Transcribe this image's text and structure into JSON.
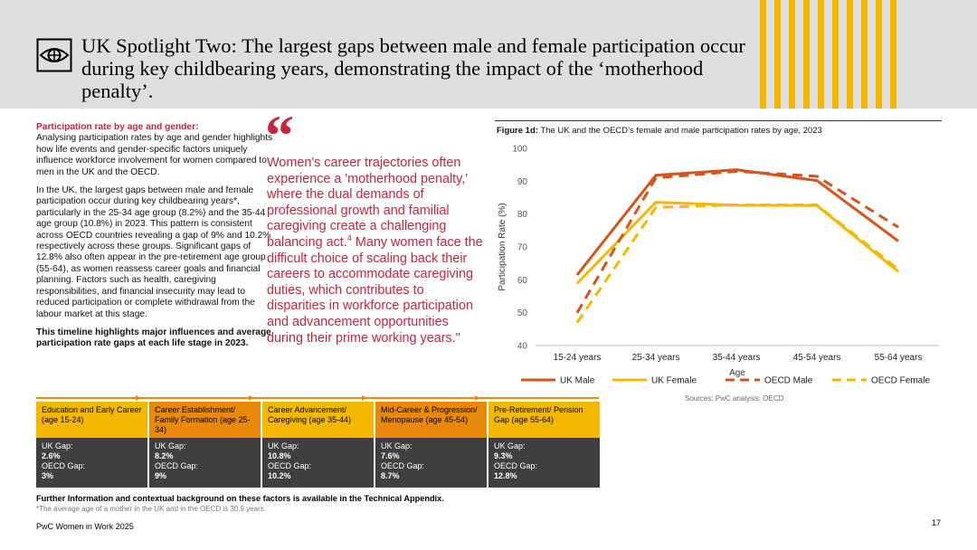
{
  "header": {
    "title": "UK Spotlight Two: The largest gaps between male and female participation occur during key childbearing years, demonstrating the impact of the ‘motherhood penalty’.",
    "icon": "eye-icon",
    "stripe_color": "#f5b800"
  },
  "left": {
    "p1_heading": "Participation rate by age and gender:",
    "p1_body": "Analysing participation rates by age and gender highlights how life events and gender-specific factors uniquely influence workforce involvement for women compared to men in the UK and the OECD.",
    "p2": "In the UK, the largest gaps between male and female participation occur during key childbearing years*, particularly in the 25-34 age group (8.2%) and the 35-44 age group (10.8%) in 2023. This pattern is consistent across OECD countries revealing a gap of 9% and 10.2% respectively across these groups. Significant gaps of 12.8% also often appear in the pre-retirement age group (55-64), as women reassess career goals and financial planning. Factors such as health, caregiving responsibilities, and financial insecurity may lead to reduced participation or complete withdrawal from the labour market at this stage.",
    "p3": "This timeline highlights major influences and average participation rate gaps at each life stage in 2023."
  },
  "quote": {
    "text_before": "Women's career trajectories often experience a 'motherhood penalty,' where the dual demands of professional growth and familial caregiving create a challenging balancing act.",
    "ref": "4",
    "text_after": " Many women face the difficult choice of scaling back their careers to accommodate caregiving duties, which contributes to disparities in workforce participation and advancement opportunities during their prime working years.\"",
    "color": "#c8243e"
  },
  "figure": {
    "caption_label": "Figure 1d:",
    "caption_text": " The UK and the OECD’s female and male participation rates by age, 2023",
    "sources": "Sources: PwC analysis; OECD"
  },
  "chart_data": {
    "type": "line",
    "categories": [
      "15-24 years",
      "25-34 years",
      "35-44 years",
      "45-54 years",
      "55-64 years"
    ],
    "series": [
      {
        "name": "UK Male",
        "values": [
          61.5,
          91.8,
          93.5,
          90.2,
          71.8
        ],
        "color": "#d4541c",
        "dashed": false
      },
      {
        "name": "UK Female",
        "values": [
          58.9,
          83.6,
          82.7,
          82.6,
          62.5
        ],
        "color": "#f5b800",
        "dashed": false
      },
      {
        "name": "OECD Male",
        "values": [
          50.0,
          91.0,
          93.0,
          91.5,
          76.0
        ],
        "color": "#d4541c",
        "dashed": true
      },
      {
        "name": "OECD Female",
        "values": [
          47.0,
          82.0,
          82.8,
          82.8,
          63.2
        ],
        "color": "#f5b800",
        "dashed": true
      }
    ],
    "xlabel": "Age",
    "ylabel": "Participation Rate (%)",
    "ylim": [
      40,
      100
    ],
    "yticks": [
      40,
      50,
      60,
      70,
      80,
      90,
      100
    ],
    "grid": false,
    "legend_position": "bottom"
  },
  "stages": [
    {
      "title": "Education and Early Career (age 15-24)",
      "uk_label": "UK Gap:",
      "uk_gap": "2.6%",
      "oecd_label": "OECD Gap:",
      "oecd_gap": "3%",
      "color": "#f5b800"
    },
    {
      "title": "Career Establishment/ Family Formation (age 25-34)",
      "uk_label": "UK Gap:",
      "uk_gap": "8.2%",
      "oecd_label": "OECD Gap:",
      "oecd_gap": "9%",
      "color": "#e8890c"
    },
    {
      "title": "Career Advancement/ Caregiving (age 35-44)",
      "uk_label": "UK Gap:",
      "uk_gap": "10.8%",
      "oecd_label": "OECD Gap:",
      "oecd_gap": "10.2%",
      "color": "#f5b800"
    },
    {
      "title": "Mid-Career & Progression/ Menopause (age 45-54)",
      "uk_label": "UK Gap:",
      "uk_gap": "7.6%",
      "oecd_label": "OECD Gap:",
      "oecd_gap": "8.7%",
      "color": "#e8890c"
    },
    {
      "title": "Pre-Retirement/ Pension Gap (age 55-64)",
      "uk_label": "UK Gap:",
      "uk_gap": "9.3%",
      "oecd_label": "OECD Gap:",
      "oecd_gap": "12.8%",
      "color": "#f5b800"
    }
  ],
  "timeline": {
    "color": "#e8890c"
  },
  "footer": {
    "further": "Further Information and contextual background on these factors is available in the Technical Appendix.",
    "footnote": "*The average age of a mother in the UK and in the OECD is 30.9 years.",
    "brand": "PwC Women in Work 2025",
    "page": "17"
  }
}
